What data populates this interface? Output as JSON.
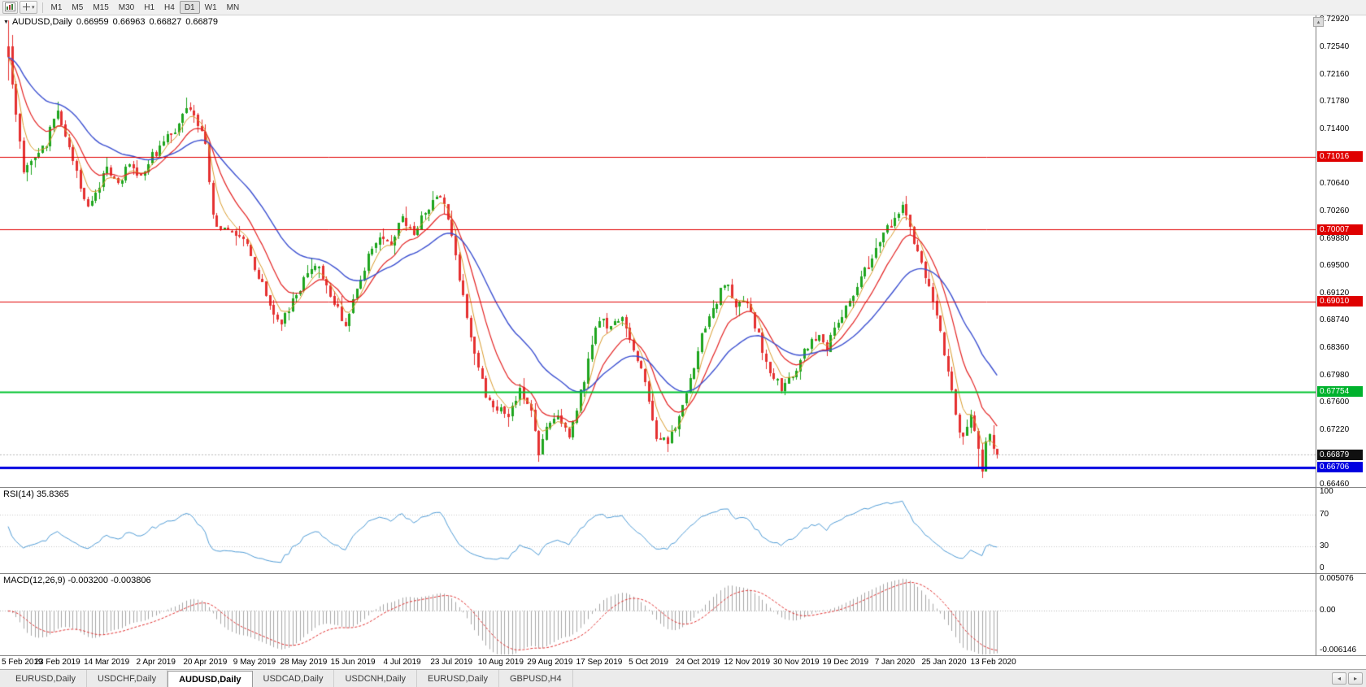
{
  "toolbar": {
    "cursor_button": {
      "caret": "▾"
    },
    "timeframes": [
      "M1",
      "M5",
      "M15",
      "M30",
      "H1",
      "H4",
      "D1",
      "W1",
      "MN"
    ],
    "active_timeframe": "D1"
  },
  "main_chart": {
    "header": {
      "collapse_icon": "▼",
      "symbol": "AUDUSD,Daily",
      "open": "0.66959",
      "high": "0.66963",
      "low": "0.66827",
      "close": "0.66879"
    },
    "scroll_button_glyph": "▴",
    "axis_labels": [
      "0.72920",
      "0.72540",
      "0.72160",
      "0.71780",
      "0.71400",
      "0.70640",
      "0.70260",
      "0.69880",
      "0.69500",
      "0.69120",
      "0.68740",
      "0.68360",
      "0.67980",
      "0.67600",
      "0.67220",
      "0.66460"
    ],
    "badges": [
      {
        "name": "resistance-1",
        "text": "0.71016",
        "price": 0.71016,
        "bg": "#df0000"
      },
      {
        "name": "resistance-2",
        "text": "0.70007",
        "price": 0.70007,
        "bg": "#df0000"
      },
      {
        "name": "resistance-3",
        "text": "0.69010",
        "price": 0.6901,
        "bg": "#df0000"
      },
      {
        "name": "support-green",
        "text": "0.67754",
        "price": 0.67754,
        "bg": "#00b22d"
      },
      {
        "name": "current-price",
        "text": "0.66879",
        "price": 0.66879,
        "bg": "#101010"
      },
      {
        "name": "support-blue",
        "text": "0.66706",
        "price": 0.66706,
        "bg": "#0000e0"
      }
    ],
    "hlines": [
      {
        "price": 0.71016,
        "color": "#e00000",
        "width": 1
      },
      {
        "price": 0.70007,
        "color": "#e00000",
        "width": 1
      },
      {
        "price": 0.6901,
        "color": "#e00000",
        "width": 1
      },
      {
        "price": 0.67754,
        "color": "#00c32f",
        "width": 2
      },
      {
        "price": 0.66706,
        "color": "#0000e0",
        "width": 3
      }
    ],
    "current_price_line": {
      "price": 0.66879,
      "color": "#b9b9b9"
    }
  },
  "rsi_panel": {
    "label": "RSI(14) 35.8365",
    "period": 14,
    "value": 35.8365,
    "line_color": "#4f9bd5",
    "level_color": "#c6c6c6",
    "levels": [
      70,
      30
    ],
    "axis_labels": [
      {
        "text": "100",
        "value": 100
      },
      {
        "text": "70",
        "value": 70
      },
      {
        "text": "30",
        "value": 30
      },
      {
        "text": "0",
        "value": 0
      }
    ]
  },
  "macd_panel": {
    "label": "MACD(12,26,9) -0.003200 -0.003806",
    "macd_value": -0.0032,
    "signal_value": -0.003806,
    "bar_color": "#a6a6a6",
    "signal_color": "#e03030",
    "axis_top_label": "0.005076",
    "axis_zero_label": "0.00",
    "axis_bottom_label": "-0.006146",
    "scale_top": 0.0052,
    "scale_bottom": -0.00625
  },
  "tabs": {
    "items": [
      "EURUSD,Daily",
      "USDCHF,Daily",
      "AUDUSD,Daily",
      "USDCAD,Daily",
      "USDCNH,Daily",
      "EURUSD,Daily",
      "GBPUSD,H4"
    ],
    "active_index": 2,
    "scroll_left_glyph": "◂",
    "scroll_right_glyph": "▸"
  },
  "chart_data": {
    "type": "candlestick",
    "symbol": "AUDUSD",
    "timeframe": "Daily",
    "candle_count": 262,
    "y_range": [
      0.6643,
      0.7298
    ],
    "ticks_every_candles": 13,
    "x_tick_labels": [
      "5 Feb 2019",
      "23 Feb 2019",
      "14 Mar 2019",
      "2 Apr 2019",
      "20 Apr 2019",
      "9 May 2019",
      "28 May 2019",
      "15 Jun 2019",
      "4 Jul 2019",
      "23 Jul 2019",
      "10 Aug 2019",
      "29 Aug 2019",
      "17 Sep 2019",
      "5 Oct 2019",
      "24 Oct 2019",
      "12 Nov 2019",
      "30 Nov 2019",
      "19 Dec 2019",
      "7 Jan 2020",
      "25 Jan 2020",
      "13 Feb 2020"
    ],
    "bull_color": "#1ea51e",
    "bear_color": "#e53030",
    "last_candle": {
      "open": 0.66959,
      "high": 0.66963,
      "low": 0.66827,
      "close": 0.66879
    },
    "moving_averages": [
      {
        "name": "fast-ma",
        "period": 5,
        "color": "#d89a2a"
      },
      {
        "name": "medium-ma",
        "period": 12,
        "color": "#e32222"
      },
      {
        "name": "slow-ma",
        "period": 30,
        "color": "#3b4fd0"
      }
    ],
    "key_levels": {
      "resistance": [
        0.71016,
        0.70007,
        0.6901
      ],
      "support": [
        0.67754,
        0.66706
      ],
      "current_price": 0.66879
    },
    "price_path_anchors": [
      [
        0,
        0.7252
      ],
      [
        2,
        0.7155
      ],
      [
        4,
        0.7085
      ],
      [
        7,
        0.7102
      ],
      [
        10,
        0.7122
      ],
      [
        13,
        0.7168
      ],
      [
        15,
        0.713
      ],
      [
        18,
        0.7078
      ],
      [
        21,
        0.7032
      ],
      [
        24,
        0.7062
      ],
      [
        26,
        0.7088
      ],
      [
        29,
        0.7066
      ],
      [
        32,
        0.7092
      ],
      [
        35,
        0.7072
      ],
      [
        38,
        0.7102
      ],
      [
        41,
        0.7122
      ],
      [
        44,
        0.7138
      ],
      [
        47,
        0.7172
      ],
      [
        50,
        0.7148
      ],
      [
        52,
        0.7118
      ],
      [
        54,
        0.7015
      ],
      [
        57,
        0.7002
      ],
      [
        60,
        0.6996
      ],
      [
        63,
        0.6976
      ],
      [
        66,
        0.6936
      ],
      [
        69,
        0.6896
      ],
      [
        72,
        0.6868
      ],
      [
        75,
        0.6902
      ],
      [
        78,
        0.6932
      ],
      [
        81,
        0.6956
      ],
      [
        84,
        0.6922
      ],
      [
        87,
        0.6892
      ],
      [
        89,
        0.6864
      ],
      [
        92,
        0.6916
      ],
      [
        95,
        0.6966
      ],
      [
        98,
        0.6996
      ],
      [
        101,
        0.6978
      ],
      [
        104,
        0.7018
      ],
      [
        107,
        0.6992
      ],
      [
        110,
        0.7028
      ],
      [
        113,
        0.7048
      ],
      [
        115,
        0.704
      ],
      [
        117,
        0.6986
      ],
      [
        120,
        0.6906
      ],
      [
        123,
        0.6832
      ],
      [
        126,
        0.6768
      ],
      [
        129,
        0.6752
      ],
      [
        132,
        0.6738
      ],
      [
        135,
        0.6782
      ],
      [
        138,
        0.6748
      ],
      [
        140,
        0.6692
      ],
      [
        142,
        0.6722
      ],
      [
        145,
        0.6738
      ],
      [
        148,
        0.6716
      ],
      [
        151,
        0.6772
      ],
      [
        154,
        0.6838
      ],
      [
        156,
        0.688
      ],
      [
        159,
        0.6862
      ],
      [
        162,
        0.688
      ],
      [
        165,
        0.6838
      ],
      [
        168,
        0.6788
      ],
      [
        171,
        0.6712
      ],
      [
        174,
        0.6702
      ],
      [
        177,
        0.6742
      ],
      [
        180,
        0.6792
      ],
      [
        183,
        0.6852
      ],
      [
        186,
        0.6886
      ],
      [
        189,
        0.6928
      ],
      [
        192,
        0.6898
      ],
      [
        195,
        0.6902
      ],
      [
        198,
        0.6852
      ],
      [
        201,
        0.6802
      ],
      [
        204,
        0.6782
      ],
      [
        207,
        0.6798
      ],
      [
        210,
        0.6832
      ],
      [
        213,
        0.6852
      ],
      [
        216,
        0.6838
      ],
      [
        219,
        0.6872
      ],
      [
        222,
        0.6902
      ],
      [
        225,
        0.6932
      ],
      [
        228,
        0.6962
      ],
      [
        231,
        0.6998
      ],
      [
        234,
        0.7012
      ],
      [
        236,
        0.7032
      ],
      [
        238,
        0.7002
      ],
      [
        240,
        0.6965
      ],
      [
        242,
        0.6935
      ],
      [
        244,
        0.6905
      ],
      [
        245,
        0.688
      ],
      [
        246,
        0.6855
      ],
      [
        247,
        0.6832
      ],
      [
        248,
        0.6805
      ],
      [
        249,
        0.6772
      ],
      [
        250,
        0.6742
      ],
      [
        251,
        0.6722
      ],
      [
        252,
        0.6708
      ],
      [
        253,
        0.6722
      ],
      [
        254,
        0.6738
      ],
      [
        255,
        0.6718
      ],
      [
        256,
        0.6692
      ],
      [
        257,
        0.6668
      ],
      [
        258,
        0.6706
      ],
      [
        259,
        0.6722
      ],
      [
        260,
        0.67
      ],
      [
        261,
        0.66879
      ]
    ]
  }
}
